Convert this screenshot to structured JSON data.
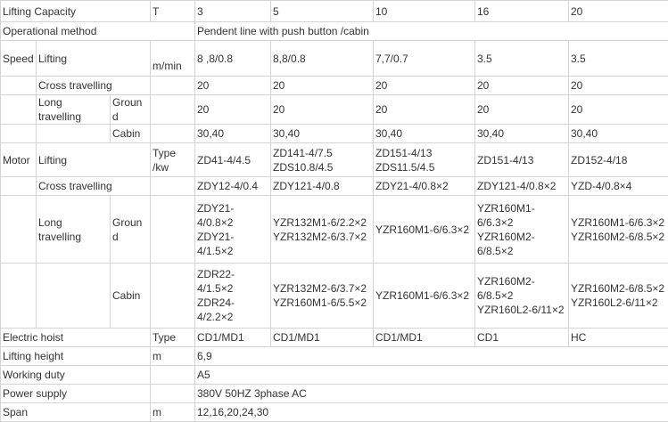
{
  "table": {
    "rows": [
      [
        "Lifting Capacity",
        "T",
        "3",
        "5",
        "10",
        "16",
        "20"
      ],
      [
        "Operational method",
        "Pendent line with push button /cabin"
      ],
      [
        "Speed",
        "Lifting",
        "m/min",
        "8 ,8/0.8",
        "8,8/0.8",
        "7,7/0.7",
        "3.5",
        "3.5"
      ],
      [
        "Cross travelling",
        "20",
        "20",
        "20",
        "20",
        "20"
      ],
      [
        "Long travelling",
        "Ground",
        "20",
        "20",
        "20",
        "20",
        "20"
      ],
      [
        "Cabin",
        "30,40",
        "30,40",
        "30,40",
        "30,40",
        "30,40"
      ],
      [
        "Motor",
        "Lifting",
        "Type /kw",
        "ZD41-4/4.5",
        "ZD141-4/7.5 ZDS10.8/4.5",
        "ZD151-4/13 ZDS11.5/4.5",
        "ZD151-4/13",
        "ZD152-4/18"
      ],
      [
        "Cross travelling",
        "ZDY12-4/0.4",
        "ZDY121-4/0.8",
        "ZDY21-4/0.8×2",
        "ZDY121-4/0.8×2",
        "YZD-4/0.8×4"
      ],
      [
        "Long travelling",
        "Ground",
        [
          "ZDY21-4/0.8×2",
          "ZDY21-4/1.5×2"
        ],
        [
          "YZR132M1-6/2.2×2",
          "YZR132M2-6/3.7×2"
        ],
        "YZR160M1-6/6.3×2",
        [
          "YZR160M1-6/6.3×2",
          "YZR160M2-6/8.5×2"
        ],
        [
          "YZR160M1-6/6.3×2",
          "YZR160M2-6/8.5×2"
        ]
      ],
      [
        "Cabin",
        [
          "ZDR22-4/1.5×2",
          "ZDR24-4/2.2×2"
        ],
        [
          "YZR132M2-6/3.7×2",
          "YZR160M1-6/5.5×2"
        ],
        "YZR160M1-6/6.3×2",
        [
          "YZR160M2-6/8.5×2",
          "YZR160L2-6/11×2"
        ],
        [
          "YZR160M2-6/8.5×2",
          "YZR160L2-6/11×2"
        ]
      ],
      [
        "Electric hoist",
        "Type",
        "CD1/MD1",
        "CD1/MD1",
        "CD1/MD1",
        "CD1",
        "HC"
      ],
      [
        "Lifting height",
        "m",
        "6,9"
      ],
      [
        "Working duty",
        "A5"
      ],
      [
        "Power supply",
        "380V 50HZ 3phase AC"
      ],
      [
        "Span",
        "m",
        "12,16,20,24,30"
      ]
    ]
  }
}
